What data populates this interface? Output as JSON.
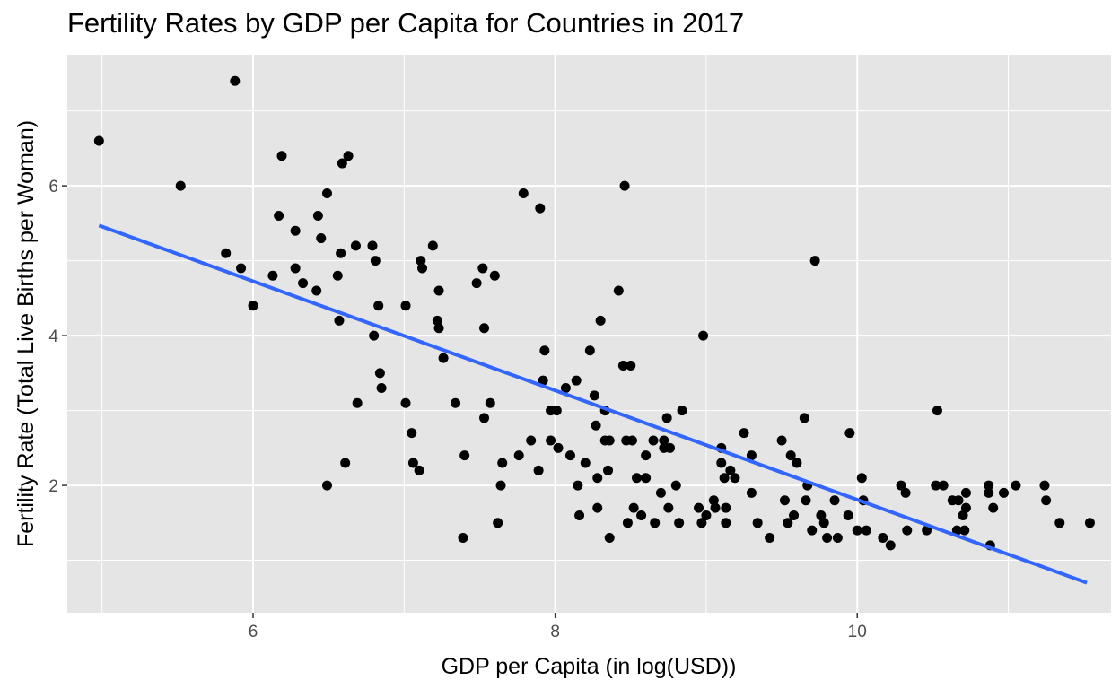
{
  "chart_data": {
    "type": "scatter",
    "title": "Fertility Rates by GDP per Capita for Countries in 2017",
    "xlabel": "GDP per Capita (in log(USD))",
    "ylabel": "Fertility Rate (Total Live Births per Woman)",
    "xlim": [
      4.77,
      11.68
    ],
    "ylim": [
      0.3,
      7.75
    ],
    "x_ticks": [
      6,
      8,
      10
    ],
    "x_tick_labels": [
      "6",
      "8",
      "10"
    ],
    "y_ticks": [
      2,
      4,
      6
    ],
    "y_tick_labels": [
      "2",
      "4",
      "6"
    ],
    "grid": true,
    "legend": "none",
    "colors": {
      "panel": "#e5e5e5",
      "grid": "#ffffff",
      "points": "#000000",
      "trend": "#3366ff"
    },
    "trend_line": {
      "x": [
        4.98,
        11.52
      ],
      "y": [
        5.47,
        0.7
      ]
    },
    "points": [
      [
        4.98,
        6.6
      ],
      [
        5.52,
        6.0
      ],
      [
        5.88,
        7.4
      ],
      [
        5.82,
        5.1
      ],
      [
        5.92,
        4.9
      ],
      [
        6.0,
        4.4
      ],
      [
        6.13,
        4.8
      ],
      [
        6.17,
        5.6
      ],
      [
        6.19,
        6.4
      ],
      [
        6.28,
        5.4
      ],
      [
        6.28,
        4.9
      ],
      [
        6.33,
        4.7
      ],
      [
        6.42,
        4.6
      ],
      [
        6.43,
        5.6
      ],
      [
        6.45,
        5.3
      ],
      [
        6.49,
        5.9
      ],
      [
        6.49,
        2.0
      ],
      [
        6.56,
        4.8
      ],
      [
        6.57,
        4.2
      ],
      [
        6.58,
        5.1
      ],
      [
        6.59,
        6.3
      ],
      [
        6.61,
        2.3
      ],
      [
        6.63,
        6.4
      ],
      [
        6.68,
        5.2
      ],
      [
        6.69,
        3.1
      ],
      [
        6.79,
        5.2
      ],
      [
        6.8,
        4.0
      ],
      [
        6.81,
        5.0
      ],
      [
        6.83,
        4.4
      ],
      [
        6.84,
        3.5
      ],
      [
        6.85,
        3.3
      ],
      [
        7.01,
        4.4
      ],
      [
        7.01,
        3.1
      ],
      [
        7.05,
        2.7
      ],
      [
        7.06,
        2.3
      ],
      [
        7.1,
        2.2
      ],
      [
        7.11,
        5.0
      ],
      [
        7.12,
        4.9
      ],
      [
        7.19,
        5.2
      ],
      [
        7.22,
        4.2
      ],
      [
        7.23,
        4.1
      ],
      [
        7.23,
        4.6
      ],
      [
        7.26,
        3.7
      ],
      [
        7.34,
        3.1
      ],
      [
        7.39,
        1.3
      ],
      [
        7.4,
        2.4
      ],
      [
        7.48,
        4.7
      ],
      [
        7.52,
        4.9
      ],
      [
        7.53,
        2.9
      ],
      [
        7.53,
        4.1
      ],
      [
        7.57,
        3.1
      ],
      [
        7.6,
        4.8
      ],
      [
        7.62,
        1.5
      ],
      [
        7.64,
        2.0
      ],
      [
        7.65,
        2.3
      ],
      [
        7.76,
        2.4
      ],
      [
        7.79,
        5.9
      ],
      [
        7.84,
        2.6
      ],
      [
        7.89,
        2.2
      ],
      [
        7.9,
        5.7
      ],
      [
        7.92,
        3.4
      ],
      [
        7.93,
        3.8
      ],
      [
        7.97,
        3.0
      ],
      [
        7.97,
        2.6
      ],
      [
        8.01,
        3.0
      ],
      [
        8.02,
        2.5
      ],
      [
        8.07,
        3.3
      ],
      [
        8.1,
        2.4
      ],
      [
        8.14,
        3.4
      ],
      [
        8.15,
        2.0
      ],
      [
        8.16,
        1.6
      ],
      [
        8.2,
        2.3
      ],
      [
        8.23,
        3.8
      ],
      [
        8.26,
        3.2
      ],
      [
        8.27,
        2.8
      ],
      [
        8.28,
        2.1
      ],
      [
        8.28,
        1.7
      ],
      [
        8.3,
        4.2
      ],
      [
        8.33,
        3.0
      ],
      [
        8.33,
        2.6
      ],
      [
        8.35,
        2.2
      ],
      [
        8.36,
        2.6
      ],
      [
        8.36,
        1.3
      ],
      [
        8.42,
        4.6
      ],
      [
        8.45,
        3.6
      ],
      [
        8.46,
        6.0
      ],
      [
        8.47,
        2.6
      ],
      [
        8.48,
        1.5
      ],
      [
        8.5,
        3.6
      ],
      [
        8.51,
        2.6
      ],
      [
        8.52,
        1.7
      ],
      [
        8.54,
        2.1
      ],
      [
        8.57,
        1.6
      ],
      [
        8.6,
        2.1
      ],
      [
        8.6,
        2.4
      ],
      [
        8.65,
        2.6
      ],
      [
        8.66,
        1.5
      ],
      [
        8.7,
        1.9
      ],
      [
        8.72,
        2.6
      ],
      [
        8.72,
        2.5
      ],
      [
        8.74,
        2.9
      ],
      [
        8.75,
        1.7
      ],
      [
        8.76,
        2.5
      ],
      [
        8.8,
        2.0
      ],
      [
        8.82,
        1.5
      ],
      [
        8.84,
        3.0
      ],
      [
        8.95,
        1.7
      ],
      [
        8.97,
        1.5
      ],
      [
        8.98,
        4.0
      ],
      [
        9.0,
        1.6
      ],
      [
        9.05,
        1.8
      ],
      [
        9.06,
        1.7
      ],
      [
        9.1,
        2.5
      ],
      [
        9.1,
        2.3
      ],
      [
        9.12,
        2.1
      ],
      [
        9.13,
        1.5
      ],
      [
        9.13,
        1.7
      ],
      [
        9.16,
        2.2
      ],
      [
        9.19,
        2.1
      ],
      [
        9.25,
        2.7
      ],
      [
        9.3,
        2.4
      ],
      [
        9.3,
        1.9
      ],
      [
        9.34,
        1.5
      ],
      [
        9.42,
        1.3
      ],
      [
        9.5,
        2.6
      ],
      [
        9.52,
        1.8
      ],
      [
        9.54,
        1.5
      ],
      [
        9.56,
        2.4
      ],
      [
        9.58,
        1.6
      ],
      [
        9.6,
        2.3
      ],
      [
        9.65,
        2.9
      ],
      [
        9.66,
        1.8
      ],
      [
        9.67,
        2.0
      ],
      [
        9.7,
        1.4
      ],
      [
        9.72,
        5.0
      ],
      [
        9.76,
        1.6
      ],
      [
        9.78,
        1.5
      ],
      [
        9.8,
        1.3
      ],
      [
        9.85,
        1.8
      ],
      [
        9.87,
        1.3
      ],
      [
        9.94,
        1.6
      ],
      [
        9.95,
        2.7
      ],
      [
        10.0,
        1.4
      ],
      [
        10.03,
        2.1
      ],
      [
        10.04,
        1.8
      ],
      [
        10.06,
        1.4
      ],
      [
        10.17,
        1.3
      ],
      [
        10.22,
        1.2
      ],
      [
        10.29,
        2.0
      ],
      [
        10.32,
        1.9
      ],
      [
        10.33,
        1.4
      ],
      [
        10.46,
        1.4
      ],
      [
        10.52,
        2.0
      ],
      [
        10.53,
        3.0
      ],
      [
        10.57,
        2.0
      ],
      [
        10.63,
        1.8
      ],
      [
        10.66,
        1.4
      ],
      [
        10.67,
        1.8
      ],
      [
        10.7,
        1.6
      ],
      [
        10.71,
        1.4
      ],
      [
        10.72,
        1.9
      ],
      [
        10.72,
        1.7
      ],
      [
        10.87,
        2.0
      ],
      [
        10.87,
        1.9
      ],
      [
        10.88,
        1.2
      ],
      [
        10.9,
        1.7
      ],
      [
        10.97,
        1.9
      ],
      [
        11.05,
        2.0
      ],
      [
        11.24,
        2.0
      ],
      [
        11.25,
        1.8
      ],
      [
        11.34,
        1.5
      ],
      [
        11.54,
        1.5
      ]
    ]
  }
}
